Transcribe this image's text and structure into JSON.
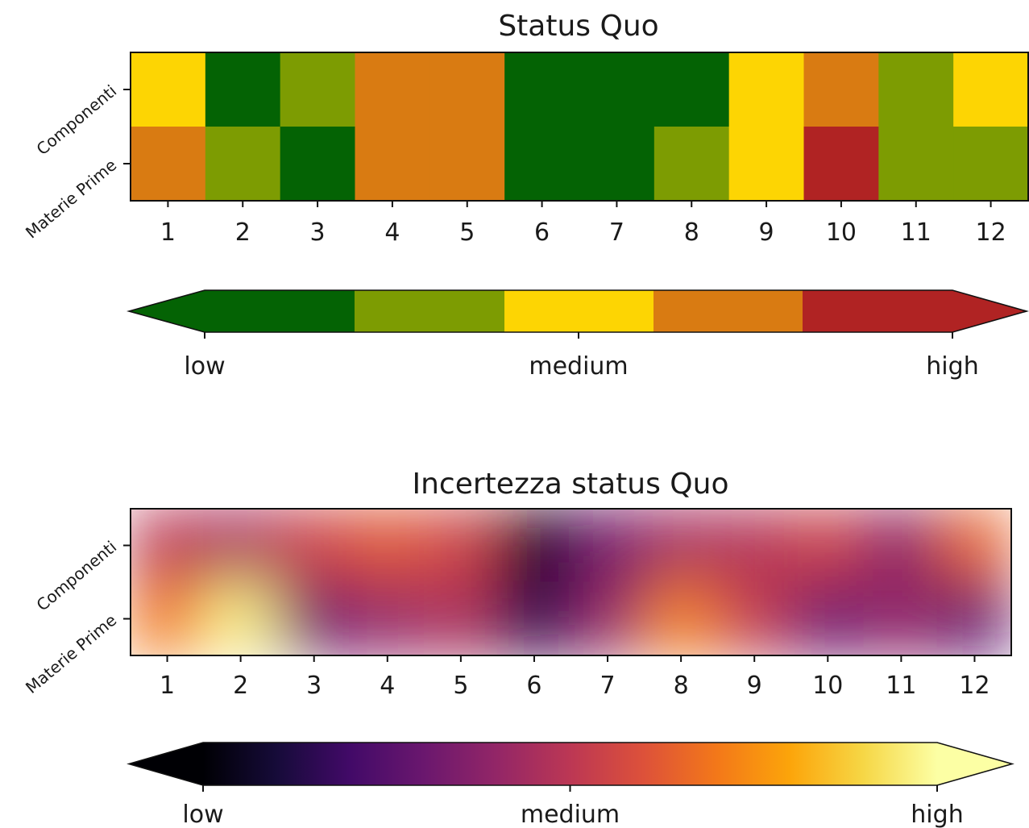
{
  "chart_data": [
    {
      "type": "heatmap",
      "title": "Status Quo",
      "x_categories": [
        "1",
        "2",
        "3",
        "4",
        "5",
        "6",
        "7",
        "8",
        "9",
        "10",
        "11",
        "12"
      ],
      "y_categories": [
        "Componenti",
        "Materie Prime"
      ],
      "levels": [
        "1",
        "2",
        "3",
        "4",
        "5"
      ],
      "level_colors": [
        "#046304",
        "#7d9c02",
        "#fdd503",
        "#d97b12",
        "#b02323"
      ],
      "values": [
        [
          3,
          1,
          2,
          4,
          4,
          1,
          1,
          1,
          3,
          4,
          2,
          3
        ],
        [
          4,
          2,
          1,
          4,
          4,
          1,
          1,
          2,
          3,
          5,
          2,
          2
        ]
      ],
      "colorbar": {
        "tick_labels": [
          "low",
          "medium",
          "high"
        ],
        "extend": "both"
      }
    },
    {
      "type": "heatmap",
      "title": "Incertezza status Quo",
      "x_categories": [
        "1",
        "2",
        "3",
        "4",
        "5",
        "6",
        "7",
        "8",
        "9",
        "10",
        "11",
        "12"
      ],
      "y_categories": [
        "Componenti",
        "Materie Prime"
      ],
      "colormap": "inferno",
      "interpolation": "bicubic",
      "value_range": [
        0,
        1
      ],
      "values": [
        [
          0.5,
          0.45,
          0.55,
          0.62,
          0.55,
          0.05,
          0.32,
          0.45,
          0.48,
          0.55,
          0.38,
          0.65
        ],
        [
          0.7,
          0.97,
          0.32,
          0.4,
          0.46,
          0.15,
          0.4,
          0.72,
          0.52,
          0.3,
          0.4,
          0.28
        ]
      ],
      "colorbar": {
        "tick_labels": [
          "low",
          "medium",
          "high"
        ],
        "extend": "both"
      }
    }
  ]
}
